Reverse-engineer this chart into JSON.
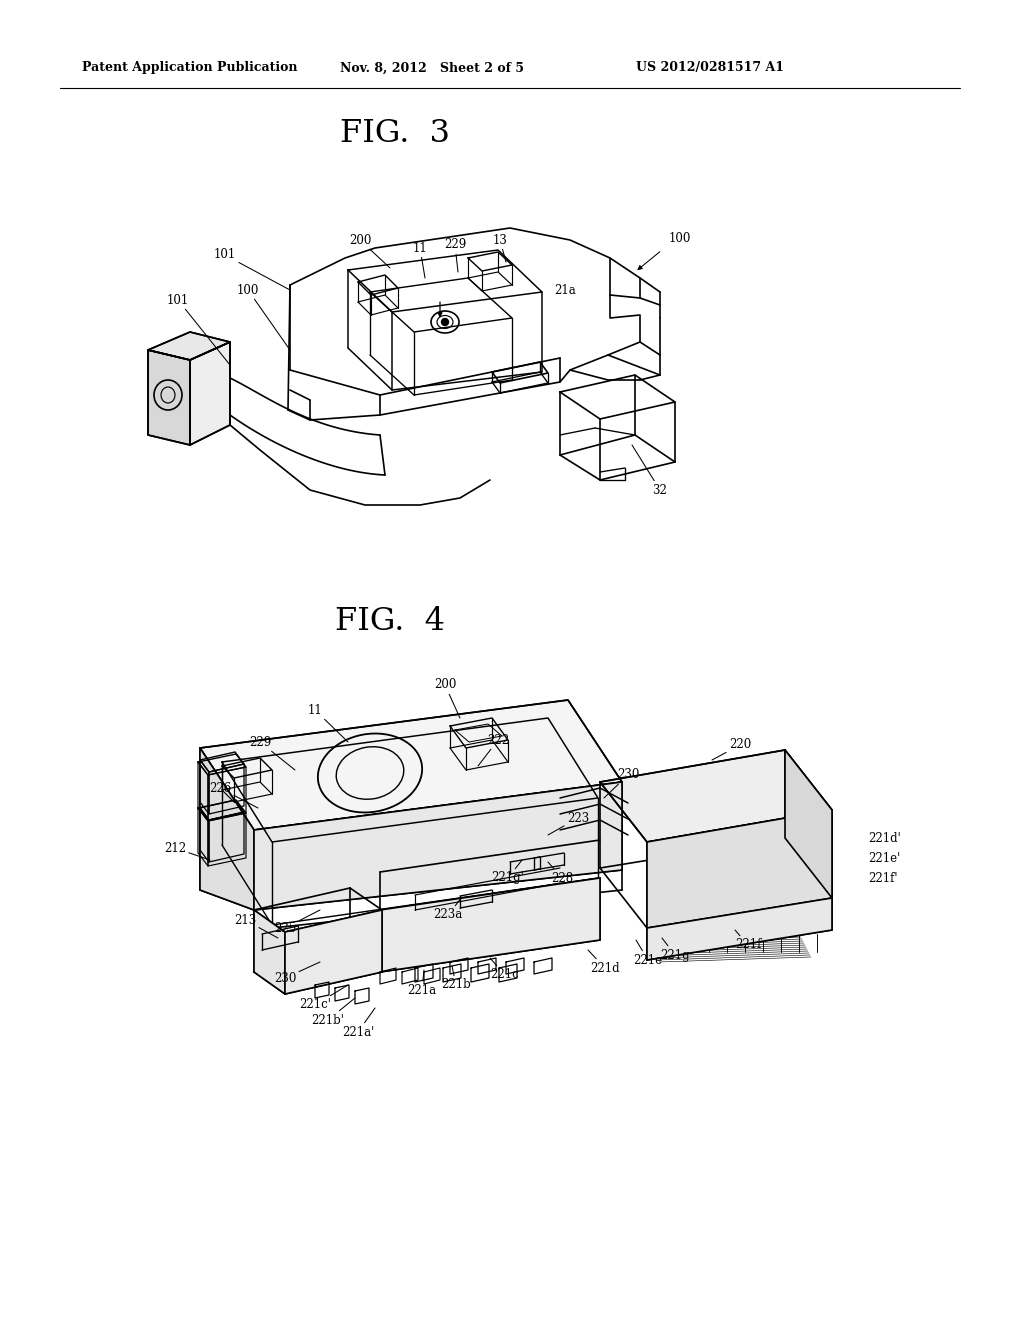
{
  "background_color": "#ffffff",
  "fig_width": 10.24,
  "fig_height": 13.2,
  "header_left": "Patent Application Publication",
  "header_mid": "Nov. 8, 2012   Sheet 2 of 5",
  "header_right": "US 2012/0281517 A1",
  "fig3_title": "FIG.  3",
  "fig4_title": "FIG.  4",
  "ann_fontsize": 8.5,
  "title_fontsize": 22
}
